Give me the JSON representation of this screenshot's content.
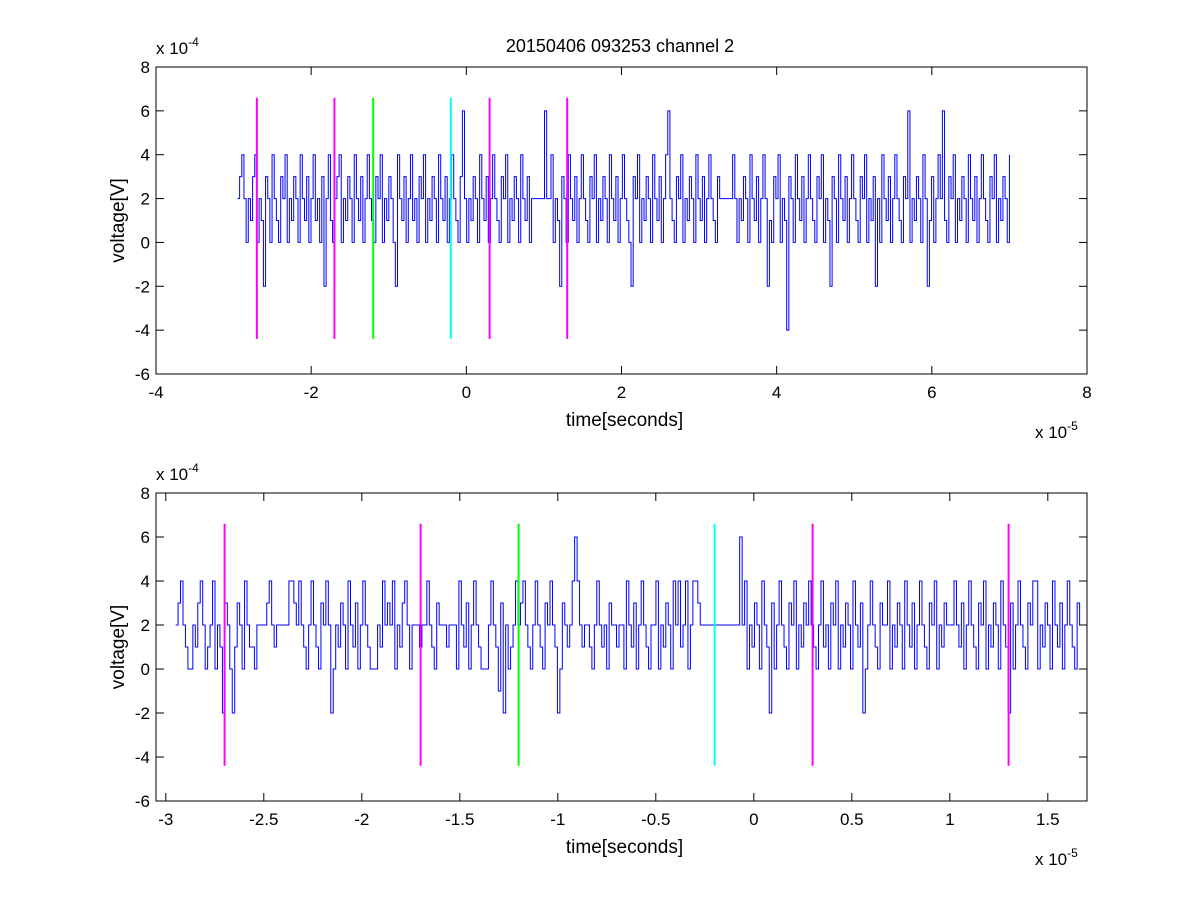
{
  "figure_title": "20150406 093253 channel 2",
  "colors": {
    "signal": "#0000ff",
    "marker_magenta": "#ff00ff",
    "marker_green": "#00ff00",
    "marker_cyan": "#00ffff",
    "axes": "#000000"
  },
  "chart_data": [
    {
      "type": "line",
      "title": "20150406 093253 channel 2",
      "xlabel": "time[seconds]",
      "ylabel": "voltage[V]",
      "xlim": [
        -4e-05,
        8e-05
      ],
      "ylim": [
        -0.0006,
        0.0008
      ],
      "x_multiplier": {
        "base": "x 10",
        "exp": "-5"
      },
      "y_multiplier": {
        "base": "x 10",
        "exp": "-4"
      },
      "x_ticks": [
        -4,
        -2,
        0,
        2,
        4,
        6,
        8
      ],
      "x_tick_labels": [
        "-4",
        "-2",
        "0",
        "2",
        "4",
        "6",
        "8"
      ],
      "y_ticks": [
        -6,
        -4,
        -2,
        0,
        2,
        4,
        6,
        8
      ],
      "y_tick_labels": [
        "-6",
        "-4",
        "-2",
        "0",
        "2",
        "4",
        "6",
        "8"
      ],
      "grid": false,
      "series": [
        {
          "kind": "signal",
          "color": "#0000ff",
          "x_start": -2.95e-05,
          "x_end": 7e-05,
          "values_e4": [
            2,
            3,
            4,
            2,
            0,
            2,
            1,
            3,
            4,
            0,
            2,
            1,
            -2,
            3,
            2,
            0,
            4,
            2,
            1,
            0,
            3,
            2,
            4,
            0,
            2,
            1,
            3,
            2,
            0,
            4,
            2,
            1,
            3,
            0,
            2,
            4,
            1,
            2,
            0,
            3,
            -2,
            2,
            4,
            1,
            0,
            2,
            3,
            4,
            0,
            2,
            1,
            3,
            2,
            0,
            4,
            2,
            1,
            3,
            0,
            2,
            4,
            2,
            1,
            0,
            3,
            2,
            4,
            0,
            2,
            1,
            3,
            2,
            0,
            -2,
            4,
            2,
            1,
            3,
            0,
            2,
            4,
            1,
            2,
            0,
            3,
            2,
            4,
            0,
            2,
            1,
            3,
            2,
            0,
            4,
            2,
            1,
            3,
            0,
            2,
            4,
            2,
            1,
            0,
            3,
            6,
            2,
            0,
            2,
            1,
            3,
            2,
            0,
            4,
            2,
            1,
            3,
            0,
            2,
            4,
            2,
            1,
            0,
            3,
            2,
            4,
            0,
            2,
            1,
            3,
            2,
            0,
            4,
            2,
            1,
            3,
            0,
            2,
            2,
            2,
            2,
            2,
            2,
            6,
            2,
            2,
            4,
            0,
            2,
            1,
            -2,
            3,
            2,
            0,
            4,
            2,
            1,
            3,
            0,
            2,
            4,
            2,
            1,
            0,
            3,
            2,
            4,
            0,
            2,
            1,
            3,
            2,
            0,
            4,
            2,
            1,
            3,
            0,
            2,
            4,
            2,
            1,
            0,
            -2,
            3,
            2,
            4,
            0,
            2,
            1,
            3,
            2,
            0,
            4,
            2,
            1,
            3,
            0,
            2,
            4,
            6,
            2,
            1,
            0,
            3,
            2,
            4,
            0,
            2,
            1,
            3,
            2,
            0,
            4,
            2,
            1,
            3,
            0,
            2,
            4,
            2,
            1,
            0,
            3,
            2,
            2,
            2,
            2,
            2,
            2,
            4,
            2,
            0,
            2,
            1,
            3,
            2,
            0,
            4,
            2,
            1,
            3,
            0,
            2,
            4,
            2,
            -2,
            1,
            0,
            3,
            2,
            4,
            0,
            2,
            1,
            -4,
            3,
            2,
            0,
            4,
            2,
            1,
            3,
            0,
            2,
            4,
            2,
            1,
            0,
            3,
            2,
            4,
            0,
            2,
            1,
            -2,
            3,
            2,
            0,
            4,
            2,
            1,
            3,
            0,
            2,
            4,
            2,
            1,
            0,
            3,
            2,
            4,
            0,
            2,
            1,
            3,
            -2,
            2,
            0,
            4,
            2,
            1,
            3,
            0,
            2,
            4,
            2,
            1,
            0,
            3,
            2,
            6,
            0,
            2,
            1,
            3,
            2,
            0,
            4,
            2,
            -2,
            1,
            3,
            0,
            2,
            4,
            2,
            6,
            1,
            0,
            3,
            2,
            4,
            0,
            2,
            1,
            3,
            2,
            0,
            4,
            2,
            1,
            3,
            0,
            2,
            4,
            2,
            1,
            0,
            3,
            2,
            4,
            0,
            2,
            1,
            3,
            2,
            0,
            4
          ]
        },
        {
          "kind": "marker",
          "color": "#ff00ff",
          "x": -2.7e-05,
          "y_range": [
            -0.00044,
            0.00066
          ]
        },
        {
          "kind": "marker",
          "color": "#ff00ff",
          "x": -1.7e-05,
          "y_range": [
            -0.00044,
            0.00066
          ]
        },
        {
          "kind": "marker",
          "color": "#00ff00",
          "x": -1.2e-05,
          "y_range": [
            -0.00044,
            0.00066
          ]
        },
        {
          "kind": "marker",
          "color": "#00ffff",
          "x": -2e-06,
          "y_range": [
            -0.00044,
            0.00066
          ]
        },
        {
          "kind": "marker",
          "color": "#ff00ff",
          "x": 3e-06,
          "y_range": [
            -0.00044,
            0.00066
          ]
        },
        {
          "kind": "marker",
          "color": "#ff00ff",
          "x": 1.3e-05,
          "y_range": [
            -0.00044,
            0.00066
          ]
        }
      ]
    },
    {
      "type": "line",
      "title": "",
      "xlabel": "time[seconds]",
      "ylabel": "voltage[V]",
      "xlim": [
        -3.05e-05,
        1.7e-05
      ],
      "ylim": [
        -0.0006,
        0.0008
      ],
      "x_multiplier": {
        "base": "x 10",
        "exp": "-5"
      },
      "y_multiplier": {
        "base": "x 10",
        "exp": "-4"
      },
      "x_ticks": [
        -3,
        -2.5,
        -2,
        -1.5,
        -1,
        -0.5,
        0,
        0.5,
        1,
        1.5
      ],
      "x_tick_labels": [
        "-3",
        "-2.5",
        "-2",
        "-1.5",
        "-1",
        "-0.5",
        "0",
        "0.5",
        "1",
        "1.5"
      ],
      "y_ticks": [
        -6,
        -4,
        -2,
        0,
        2,
        4,
        6,
        8
      ],
      "y_tick_labels": [
        "-6",
        "-4",
        "-2",
        "0",
        "2",
        "4",
        "6",
        "8"
      ],
      "grid": false,
      "series": [
        {
          "kind": "signal",
          "color": "#0000ff",
          "x_start": -2.95e-05,
          "x_end": 1.7e-05,
          "values_e4": [
            2,
            3,
            4,
            2,
            1,
            0,
            0,
            2,
            1,
            3,
            4,
            2,
            0,
            1,
            2,
            4,
            0,
            2,
            1,
            -2,
            3,
            2,
            0,
            -2,
            1,
            3,
            2,
            0,
            4,
            2,
            1,
            1,
            0,
            2,
            2,
            2,
            2,
            3,
            4,
            2,
            1,
            2,
            2,
            2,
            2,
            2,
            4,
            4,
            3,
            2,
            4,
            2,
            1,
            0,
            2,
            4,
            2,
            1,
            0,
            3,
            2,
            4,
            2,
            -2,
            0,
            2,
            1,
            3,
            2,
            0,
            4,
            2,
            1,
            3,
            0,
            2,
            4,
            2,
            1,
            0,
            0,
            0,
            2,
            1,
            4,
            2,
            3,
            2,
            4,
            0,
            2,
            1,
            3,
            4,
            2,
            0,
            2,
            2,
            2,
            1,
            2,
            2,
            4,
            2,
            1,
            0,
            3,
            2,
            2,
            2,
            1,
            2,
            2,
            2,
            0,
            4,
            2,
            1,
            3,
            0,
            2,
            4,
            2,
            1,
            0,
            0,
            0,
            2,
            4,
            2,
            1,
            -1,
            3,
            -2,
            2,
            0,
            1,
            2,
            4,
            2,
            3,
            4,
            2,
            1,
            0,
            2,
            4,
            2,
            1,
            0,
            3,
            2,
            4,
            2,
            1,
            -2,
            0,
            3,
            2,
            1,
            2,
            4,
            6,
            4,
            2,
            1,
            2,
            2,
            1,
            0,
            2,
            4,
            2,
            1,
            2,
            0,
            3,
            2,
            2,
            1,
            2,
            2,
            0,
            4,
            2,
            1,
            3,
            0,
            2,
            4,
            2,
            1,
            0,
            2,
            2,
            4,
            0,
            2,
            1,
            3,
            2,
            0,
            4,
            2,
            4,
            1,
            2,
            4,
            0,
            2,
            4,
            4,
            3,
            2,
            2,
            2,
            2,
            2,
            2,
            2,
            2,
            2,
            2,
            2,
            2,
            2,
            2,
            2,
            2,
            6,
            2,
            4,
            0,
            2,
            1,
            3,
            2,
            0,
            4,
            2,
            1,
            -2,
            3,
            0,
            2,
            4,
            2,
            1,
            0,
            3,
            2,
            4,
            0,
            2,
            1,
            3,
            2,
            4,
            2,
            1,
            0,
            2,
            4,
            1,
            2,
            0,
            3,
            2,
            4,
            0,
            2,
            1,
            3,
            2,
            0,
            4,
            2,
            1,
            3,
            -2,
            0,
            2,
            4,
            2,
            1,
            0,
            3,
            2,
            2,
            4,
            0,
            2,
            1,
            3,
            2,
            0,
            4,
            2,
            1,
            3,
            0,
            2,
            4,
            2,
            1,
            0,
            3,
            2,
            4,
            0,
            2,
            1,
            3,
            2,
            2,
            2,
            4,
            2,
            1,
            3,
            0,
            2,
            4,
            2,
            1,
            0,
            3,
            2,
            4,
            0,
            2,
            1,
            3,
            2,
            0,
            4,
            2,
            1,
            -2,
            3,
            0,
            2,
            4,
            2,
            1,
            0,
            3,
            2,
            4,
            4,
            0,
            2,
            1,
            3,
            2,
            0,
            4,
            2,
            1,
            3,
            0,
            2,
            4,
            2,
            1,
            0,
            3,
            2,
            2,
            2,
            2
          ]
        },
        {
          "kind": "marker",
          "color": "#ff00ff",
          "x": -2.7e-05,
          "y_range": [
            -0.00044,
            0.00066
          ]
        },
        {
          "kind": "marker",
          "color": "#ff00ff",
          "x": -1.7e-05,
          "y_range": [
            -0.00044,
            0.00066
          ]
        },
        {
          "kind": "marker",
          "color": "#00ff00",
          "x": -1.2e-05,
          "y_range": [
            -0.00044,
            0.00066
          ]
        },
        {
          "kind": "marker",
          "color": "#00ffff",
          "x": -2e-06,
          "y_range": [
            -0.00044,
            0.00066
          ]
        },
        {
          "kind": "marker",
          "color": "#ff00ff",
          "x": 3e-06,
          "y_range": [
            -0.00044,
            0.00066
          ]
        },
        {
          "kind": "marker",
          "color": "#ff00ff",
          "x": 1.3e-05,
          "y_range": [
            -0.00044,
            0.00066
          ]
        }
      ]
    }
  ]
}
